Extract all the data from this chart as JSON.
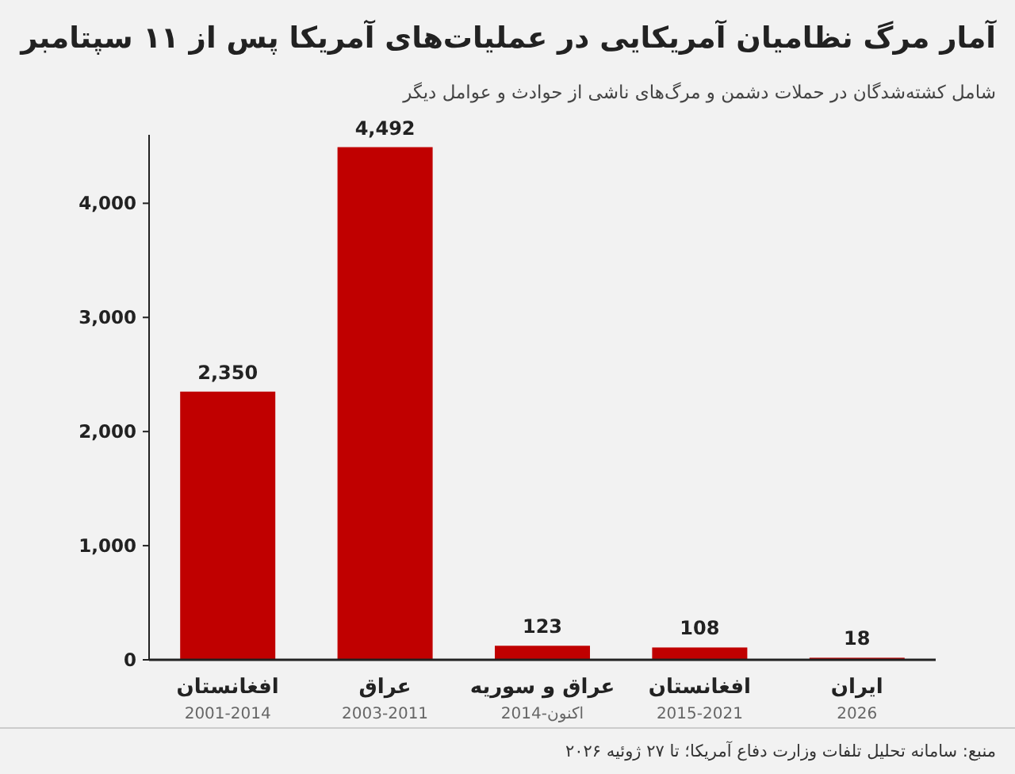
{
  "chart_data": {
    "type": "bar",
    "title": "آمار مرگ نظامیان آمریکایی در عملیات‌های آمریکا پس از ۱۱ سپتامبر",
    "subtitle": "شامل کشته‌شدگان در حملات دشمن و مرگ‌های ناشی از حوادث و عوامل دیگر",
    "categories": [
      "افغانستان\n2001-2014",
      "عراق\n2003-2011",
      "عراق و سوریه\n2014-اکنون",
      "افغانستان\n2015-2021",
      "ایران\n2026"
    ],
    "values": [
      2350,
      4492,
      123,
      108,
      18
    ],
    "value_labels": [
      "2,350",
      "4,492",
      "123",
      "108",
      "18"
    ],
    "color": "#c00000",
    "ylim": [
      0,
      4600
    ],
    "yticks": [
      {
        "value": 0,
        "label": "0"
      },
      {
        "value": 1000,
        "label": "1,000"
      },
      {
        "value": 2000,
        "label": "2,000"
      },
      {
        "value": 3000,
        "label": "3,000"
      },
      {
        "value": 4000,
        "label": "4,000"
      }
    ],
    "grid": false,
    "annotations": [
      "منبع: سامانه تحلیل تلفات وزارت دفاع آمریکا؛ تا ۲۷ ژوئیه ۲۰۲۶"
    ]
  }
}
